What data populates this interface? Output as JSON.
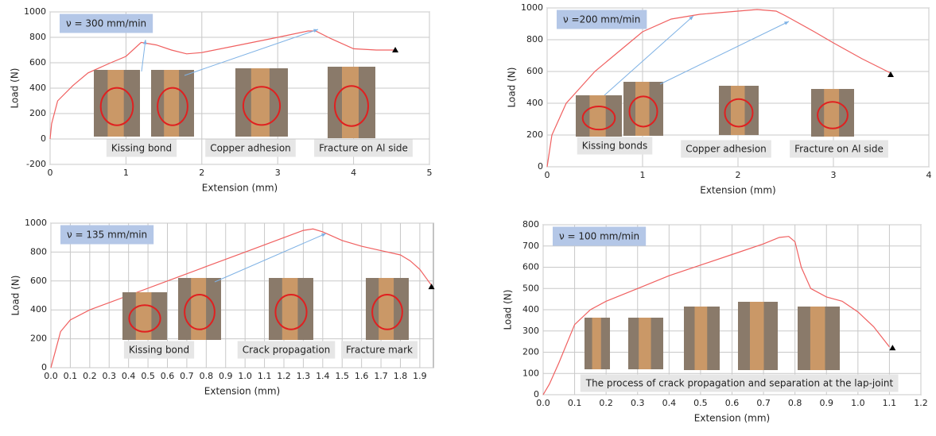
{
  "chart_data": [
    {
      "type": "line",
      "title": "ν = 300 mm/min",
      "xlabel": "Extension (mm)",
      "ylabel": "Load (N)",
      "color": "#f06060",
      "x": [
        0,
        0.02,
        0.1,
        0.3,
        0.5,
        0.8,
        1.0,
        1.2,
        1.4,
        1.6,
        1.8,
        2.0,
        2.5,
        3.0,
        3.4,
        3.5,
        3.7,
        4.0,
        4.3,
        4.55
      ],
      "values": [
        0,
        120,
        300,
        420,
        520,
        600,
        650,
        760,
        740,
        700,
        670,
        680,
        740,
        800,
        850,
        850,
        790,
        710,
        700,
        700
      ],
      "end_marker": {
        "x": 4.55,
        "y": 700
      },
      "xlim": [
        0,
        5
      ],
      "xticks": [
        0,
        1,
        2,
        3,
        4,
        5
      ],
      "ylim": [
        -200,
        1000
      ],
      "yticks": [
        -200,
        0,
        200,
        400,
        600,
        800,
        1000
      ],
      "grid": true,
      "annotations": [
        "Kissing bond",
        "Copper adhesion",
        "Fracture on Al side"
      ]
    },
    {
      "type": "line",
      "title": "ν =200 mm/min",
      "xlabel": "Extension (mm)",
      "ylabel": "Load (N)",
      "color": "#f06060",
      "x": [
        0,
        0.05,
        0.2,
        0.5,
        0.8,
        1.0,
        1.3,
        1.6,
        1.8,
        2.0,
        2.2,
        2.4,
        2.5,
        2.8,
        3.0,
        3.3,
        3.6
      ],
      "values": [
        0,
        200,
        400,
        600,
        750,
        850,
        930,
        960,
        970,
        980,
        990,
        980,
        950,
        850,
        780,
        680,
        590
      ],
      "end_marker": {
        "x": 3.6,
        "y": 580
      },
      "xlim": [
        0,
        4
      ],
      "xticks": [
        0,
        1,
        2,
        3,
        4
      ],
      "ylim": [
        0,
        1000
      ],
      "yticks": [
        0,
        200,
        400,
        600,
        800,
        1000
      ],
      "grid": true,
      "annotations": [
        "Kissing bonds",
        "Copper adhesion",
        "Fracture on Al side"
      ]
    },
    {
      "type": "line",
      "title": "ν = 135 mm/min",
      "xlabel": "Extension (mm)",
      "ylabel": "Load (N)",
      "color": "#f06060",
      "x": [
        0,
        0.02,
        0.05,
        0.1,
        0.2,
        0.4,
        0.6,
        0.8,
        1.0,
        1.2,
        1.3,
        1.35,
        1.4,
        1.5,
        1.6,
        1.7,
        1.8,
        1.85,
        1.9,
        1.96
      ],
      "values": [
        0,
        100,
        250,
        330,
        400,
        500,
        600,
        700,
        800,
        900,
        950,
        960,
        940,
        880,
        840,
        810,
        780,
        740,
        680,
        570
      ],
      "end_marker": {
        "x": 1.96,
        "y": 560
      },
      "xlim": [
        0,
        1.97
      ],
      "xticks": [
        {
          "value": 0,
          "label": "0.0"
        },
        0.1,
        0.2,
        0.3,
        0.4,
        0.5,
        0.6,
        0.7,
        0.8,
        0.9,
        {
          "value": 1,
          "label": "1.0"
        },
        1.1,
        1.2,
        1.3,
        1.4,
        1.5,
        1.6,
        1.7,
        1.8,
        1.9
      ],
      "ylim": [
        0,
        1000
      ],
      "yticks": [
        0,
        200,
        400,
        600,
        800,
        1000
      ],
      "grid": true,
      "annotations": [
        "Kissing bond",
        "Crack propagation",
        "Fracture mark"
      ]
    },
    {
      "type": "line",
      "title": "ν = 100 mm/min",
      "xlabel": "Extension (mm)",
      "ylabel": "Load (N)",
      "color": "#f06060",
      "x": [
        0,
        0.02,
        0.05,
        0.1,
        0.15,
        0.2,
        0.3,
        0.4,
        0.5,
        0.6,
        0.7,
        0.75,
        0.78,
        0.8,
        0.82,
        0.85,
        0.9,
        0.95,
        1.0,
        1.05,
        1.1
      ],
      "values": [
        0,
        50,
        150,
        330,
        400,
        440,
        500,
        560,
        610,
        660,
        710,
        740,
        745,
        720,
        600,
        500,
        460,
        440,
        390,
        320,
        225
      ],
      "end_marker": {
        "x": 1.11,
        "y": 220
      },
      "xlim": [
        0,
        1.2
      ],
      "xticks": [
        {
          "value": 0,
          "label": "0.0"
        },
        0.1,
        0.2,
        0.3,
        0.4,
        0.5,
        0.6,
        0.7,
        0.8,
        0.9,
        {
          "value": 1,
          "label": "1.0"
        },
        1.1,
        1.2
      ],
      "ylim": [
        0,
        800
      ],
      "yticks": [
        0,
        100,
        200,
        300,
        400,
        500,
        600,
        700,
        800
      ],
      "grid": true,
      "annotations": [
        "The process of crack propagation and separation at the lap-joint"
      ]
    }
  ]
}
